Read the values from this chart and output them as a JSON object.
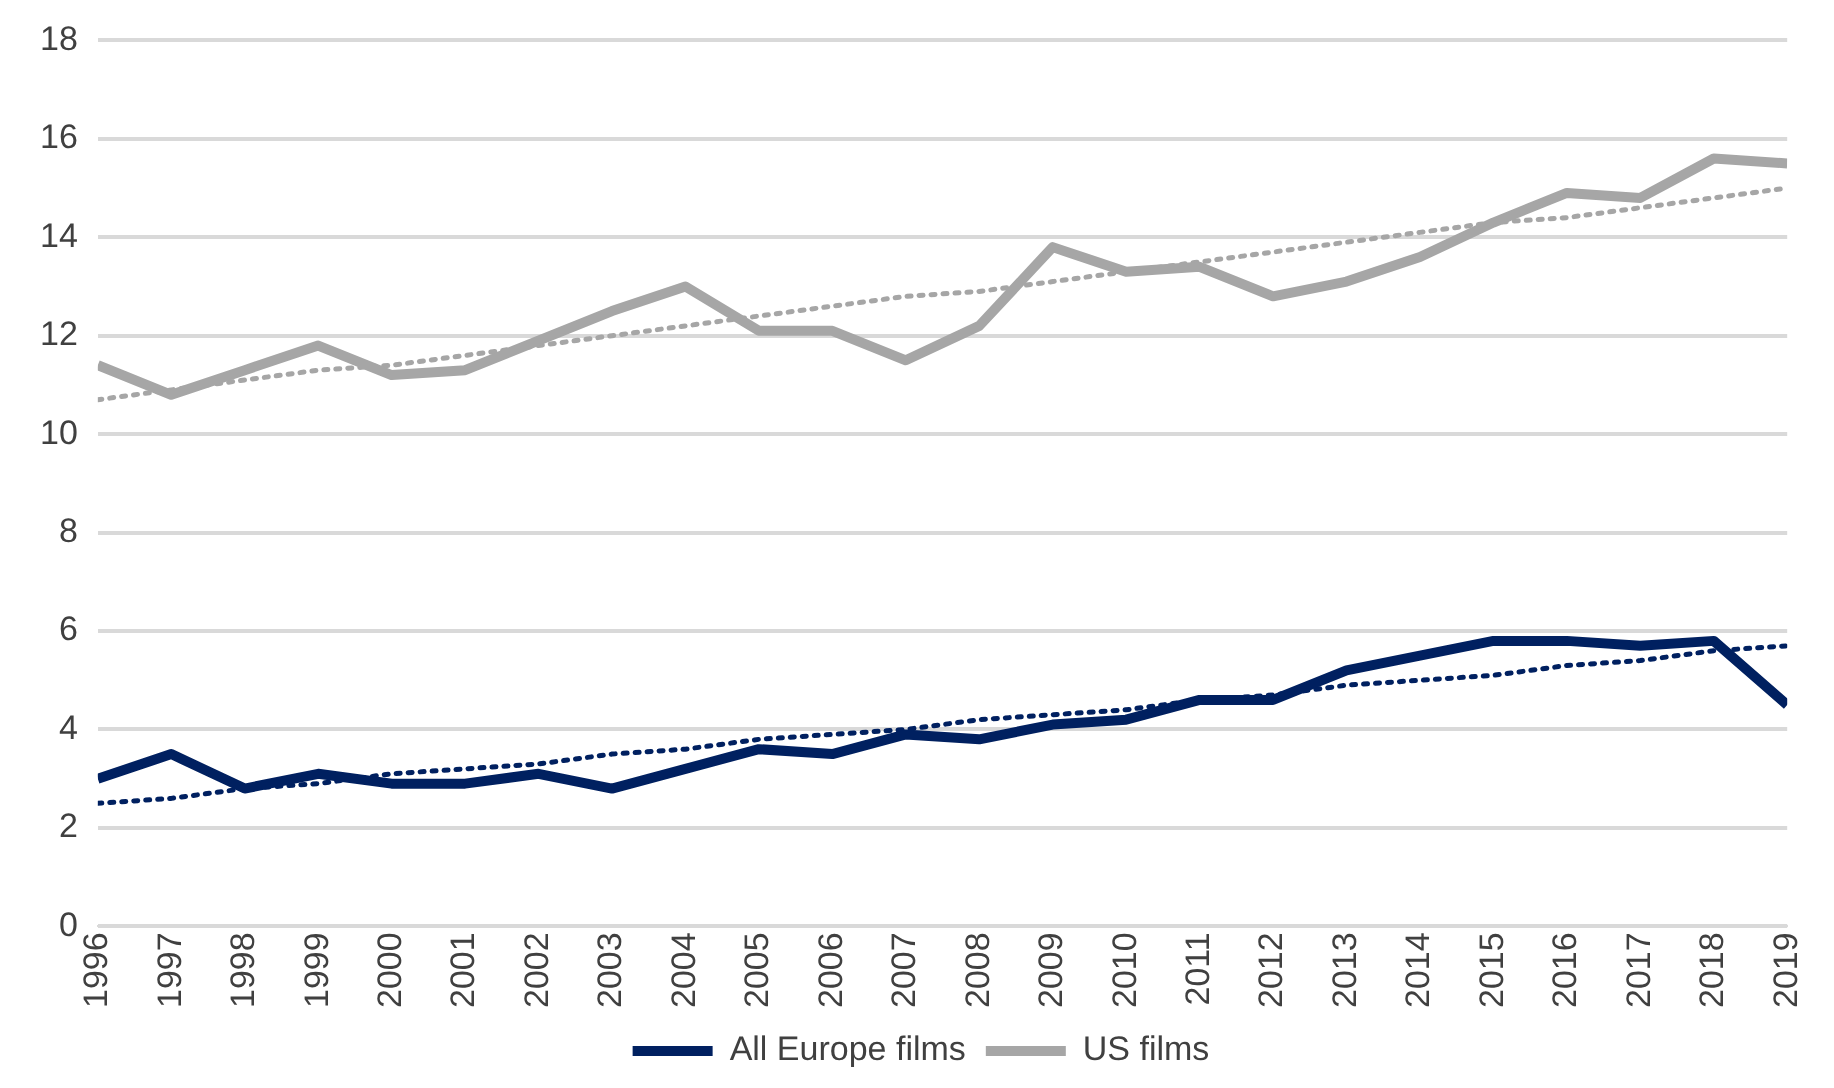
{
  "chart_data": {
    "type": "line",
    "x": [
      1996,
      1997,
      1998,
      1999,
      2000,
      2001,
      2002,
      2003,
      2004,
      2005,
      2006,
      2007,
      2008,
      2009,
      2010,
      2011,
      2012,
      2013,
      2014,
      2015,
      2016,
      2017,
      2018,
      2019
    ],
    "xlim": [
      1996,
      2019
    ],
    "xticks": [
      1996,
      1997,
      1998,
      1999,
      2000,
      2001,
      2002,
      2003,
      2004,
      2005,
      2006,
      2007,
      2008,
      2009,
      2010,
      2011,
      2012,
      2013,
      2014,
      2015,
      2016,
      2017,
      2018,
      2019
    ],
    "ylim": [
      0,
      18
    ],
    "yticks": [
      0,
      2,
      4,
      6,
      8,
      10,
      12,
      14,
      16,
      18
    ],
    "grid": "y",
    "legend": "bottom",
    "marker": "none",
    "series": [
      {
        "name": "All Europe films",
        "color": "#002060",
        "values": [
          3.0,
          3.5,
          2.8,
          3.1,
          2.9,
          2.9,
          3.1,
          2.8,
          3.2,
          3.6,
          3.5,
          3.9,
          3.8,
          4.1,
          4.2,
          4.6,
          4.6,
          5.2,
          5.5,
          5.8,
          5.8,
          5.7,
          5.8,
          4.5
        ]
      },
      {
        "name": "US films",
        "color": "#a6a6a6",
        "values": [
          11.4,
          10.8,
          11.3,
          11.8,
          11.2,
          11.3,
          11.9,
          12.5,
          13.0,
          12.1,
          12.1,
          11.5,
          12.2,
          13.8,
          13.3,
          13.4,
          12.8,
          13.1,
          13.6,
          14.3,
          14.9,
          14.8,
          15.6,
          15.5
        ]
      },
      {
        "type": "line",
        "color": "#002060",
        "line_style": "dotted",
        "values": [
          2.5,
          2.6,
          2.8,
          2.9,
          3.1,
          3.2,
          3.3,
          3.5,
          3.6,
          3.8,
          3.9,
          4.0,
          4.2,
          4.3,
          4.4,
          4.6,
          4.7,
          4.9,
          5.0,
          5.1,
          5.3,
          5.4,
          5.6,
          5.7
        ]
      },
      {
        "type": "line",
        "color": "#a6a6a6",
        "line_style": "dotted",
        "values": [
          10.7,
          10.9,
          11.1,
          11.3,
          11.4,
          11.6,
          11.8,
          12.0,
          12.2,
          12.4,
          12.6,
          12.8,
          12.9,
          13.1,
          13.3,
          13.5,
          13.7,
          13.9,
          14.1,
          14.3,
          14.4,
          14.6,
          14.8,
          15.0
        ]
      }
    ]
  }
}
